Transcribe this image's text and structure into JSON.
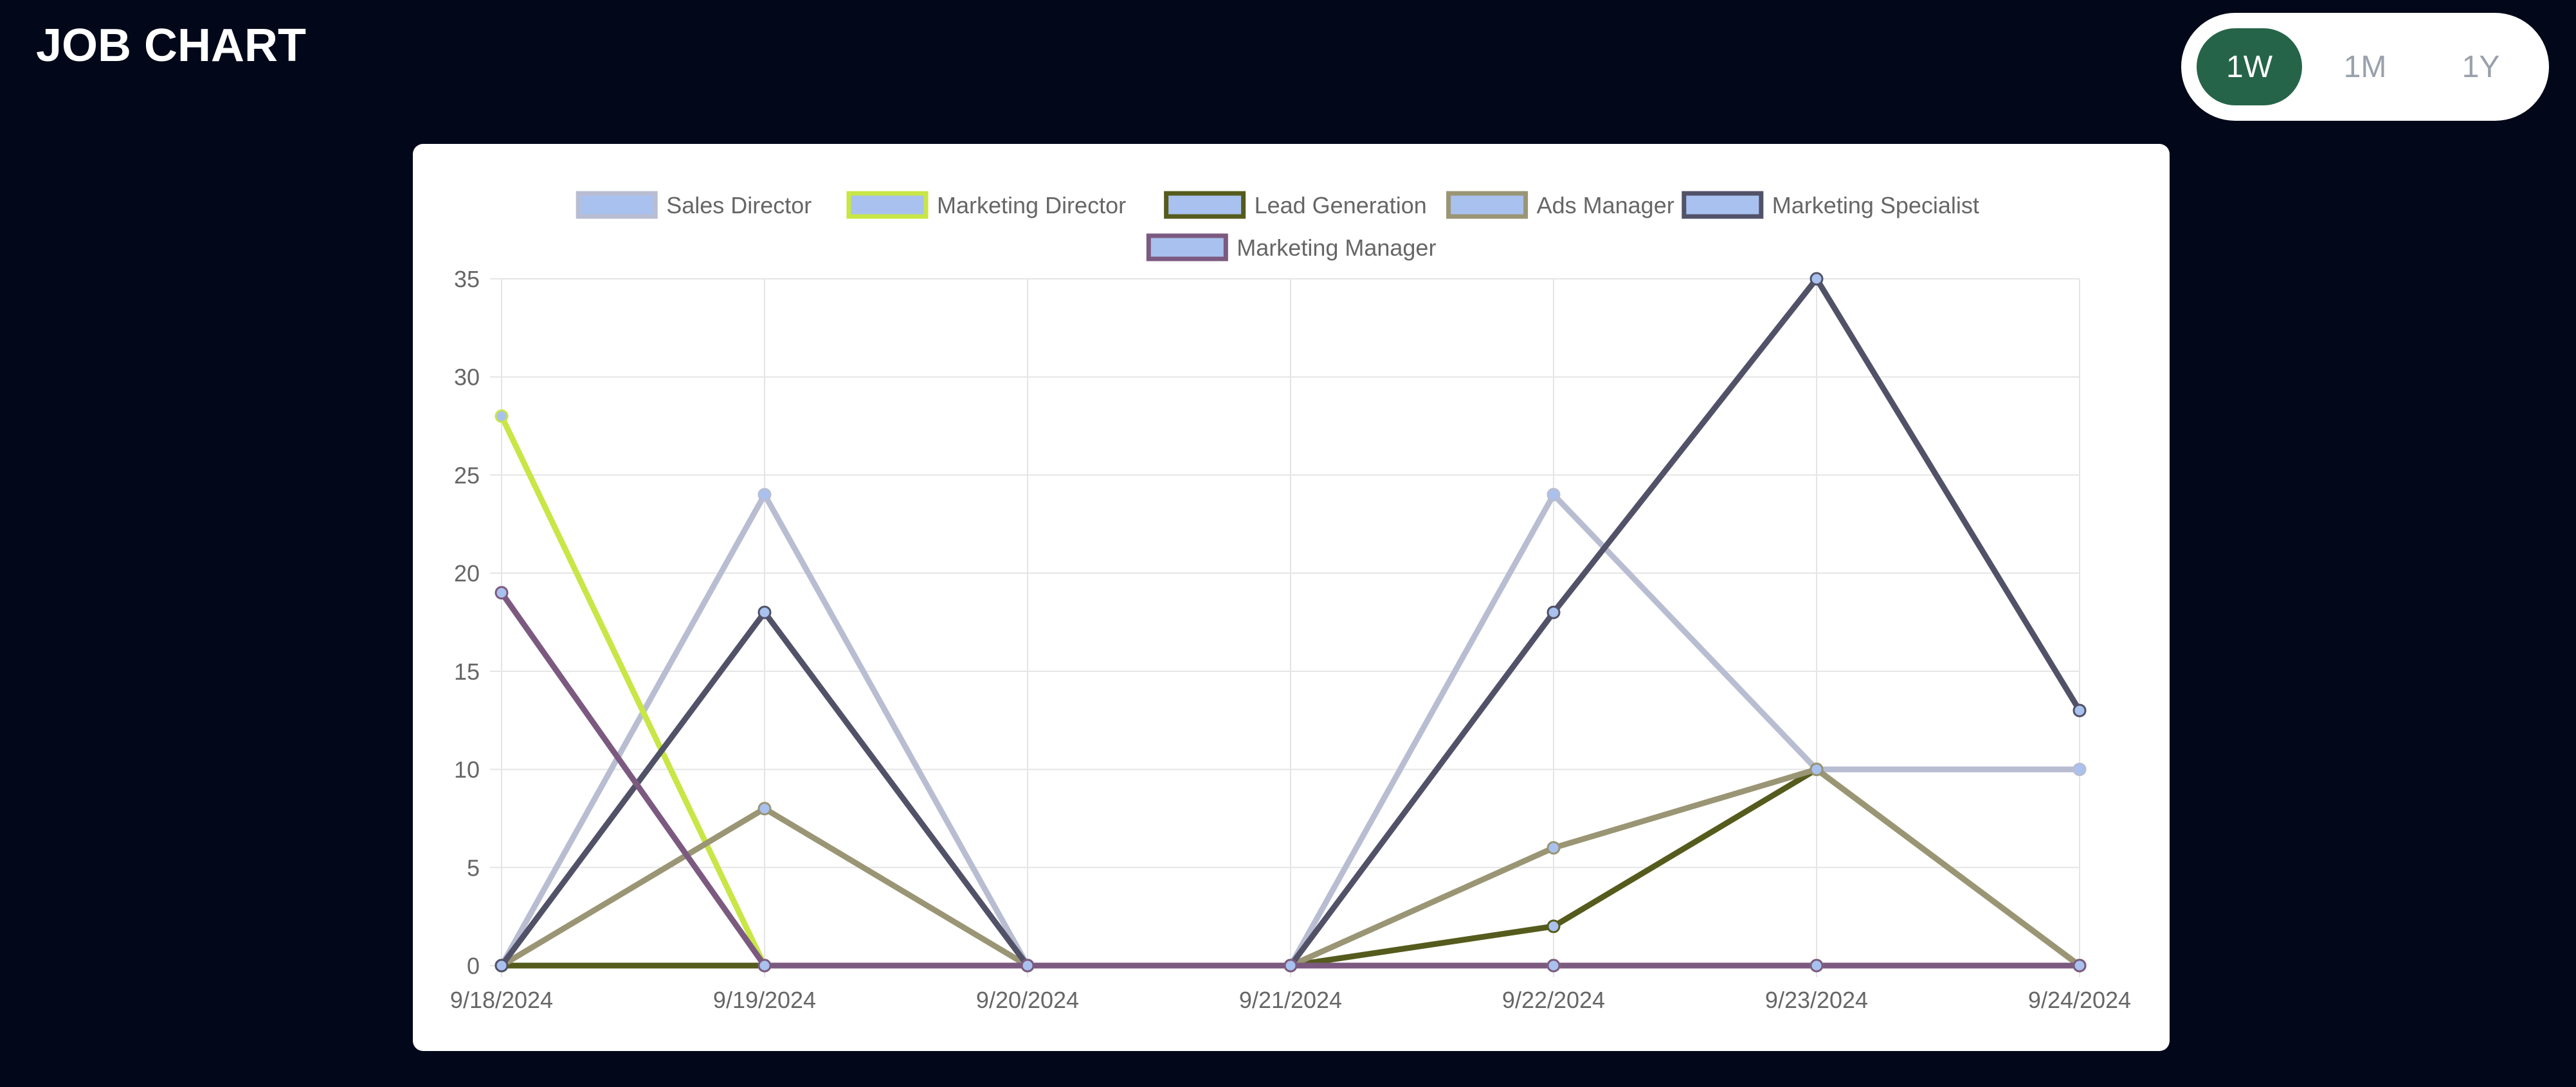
{
  "header": {
    "title": "JOB CHART"
  },
  "range_switch": {
    "options": [
      "1W",
      "1M",
      "1Y"
    ],
    "selected": "1W"
  },
  "colors": {
    "background": "#020819",
    "card": "#ffffff",
    "active_button": "#256449",
    "inactive_text": "#9aa1ab"
  },
  "chart_data": {
    "type": "line",
    "title": "",
    "xlabel": "",
    "ylabel": "",
    "x": [
      "9/18/2024",
      "9/19/2024",
      "9/20/2024",
      "9/21/2024",
      "9/22/2024",
      "9/23/2024",
      "9/24/2024"
    ],
    "ylim": [
      0,
      35
    ],
    "yticks": [
      0,
      5,
      10,
      15,
      20,
      25,
      30,
      35
    ],
    "grid": true,
    "legend_position": "top",
    "series": [
      {
        "name": "Sales Director",
        "values": [
          0,
          24,
          0,
          0,
          24,
          10,
          10
        ],
        "line_color": "#b9bdd2",
        "fill_color": "#a9c1ee"
      },
      {
        "name": "Marketing Director",
        "values": [
          28,
          0,
          0,
          0,
          0,
          0,
          0
        ],
        "line_color": "#c8e646",
        "fill_color": "#a9c1ee"
      },
      {
        "name": "Lead Generation",
        "values": [
          0,
          0,
          0,
          0,
          2,
          10,
          0
        ],
        "line_color": "#555b1c",
        "fill_color": "#a9c1ee"
      },
      {
        "name": "Ads Manager",
        "values": [
          0,
          8,
          0,
          0,
          6,
          10,
          0
        ],
        "line_color": "#9a9574",
        "fill_color": "#a9c1ee"
      },
      {
        "name": "Marketing Specialist",
        "values": [
          0,
          18,
          0,
          0,
          18,
          35,
          13
        ],
        "line_color": "#515168",
        "fill_color": "#a9c1ee"
      },
      {
        "name": "Marketing Manager",
        "values": [
          19,
          0,
          0,
          0,
          0,
          0,
          0
        ],
        "line_color": "#7c5a80",
        "fill_color": "#a9c1ee"
      }
    ]
  }
}
